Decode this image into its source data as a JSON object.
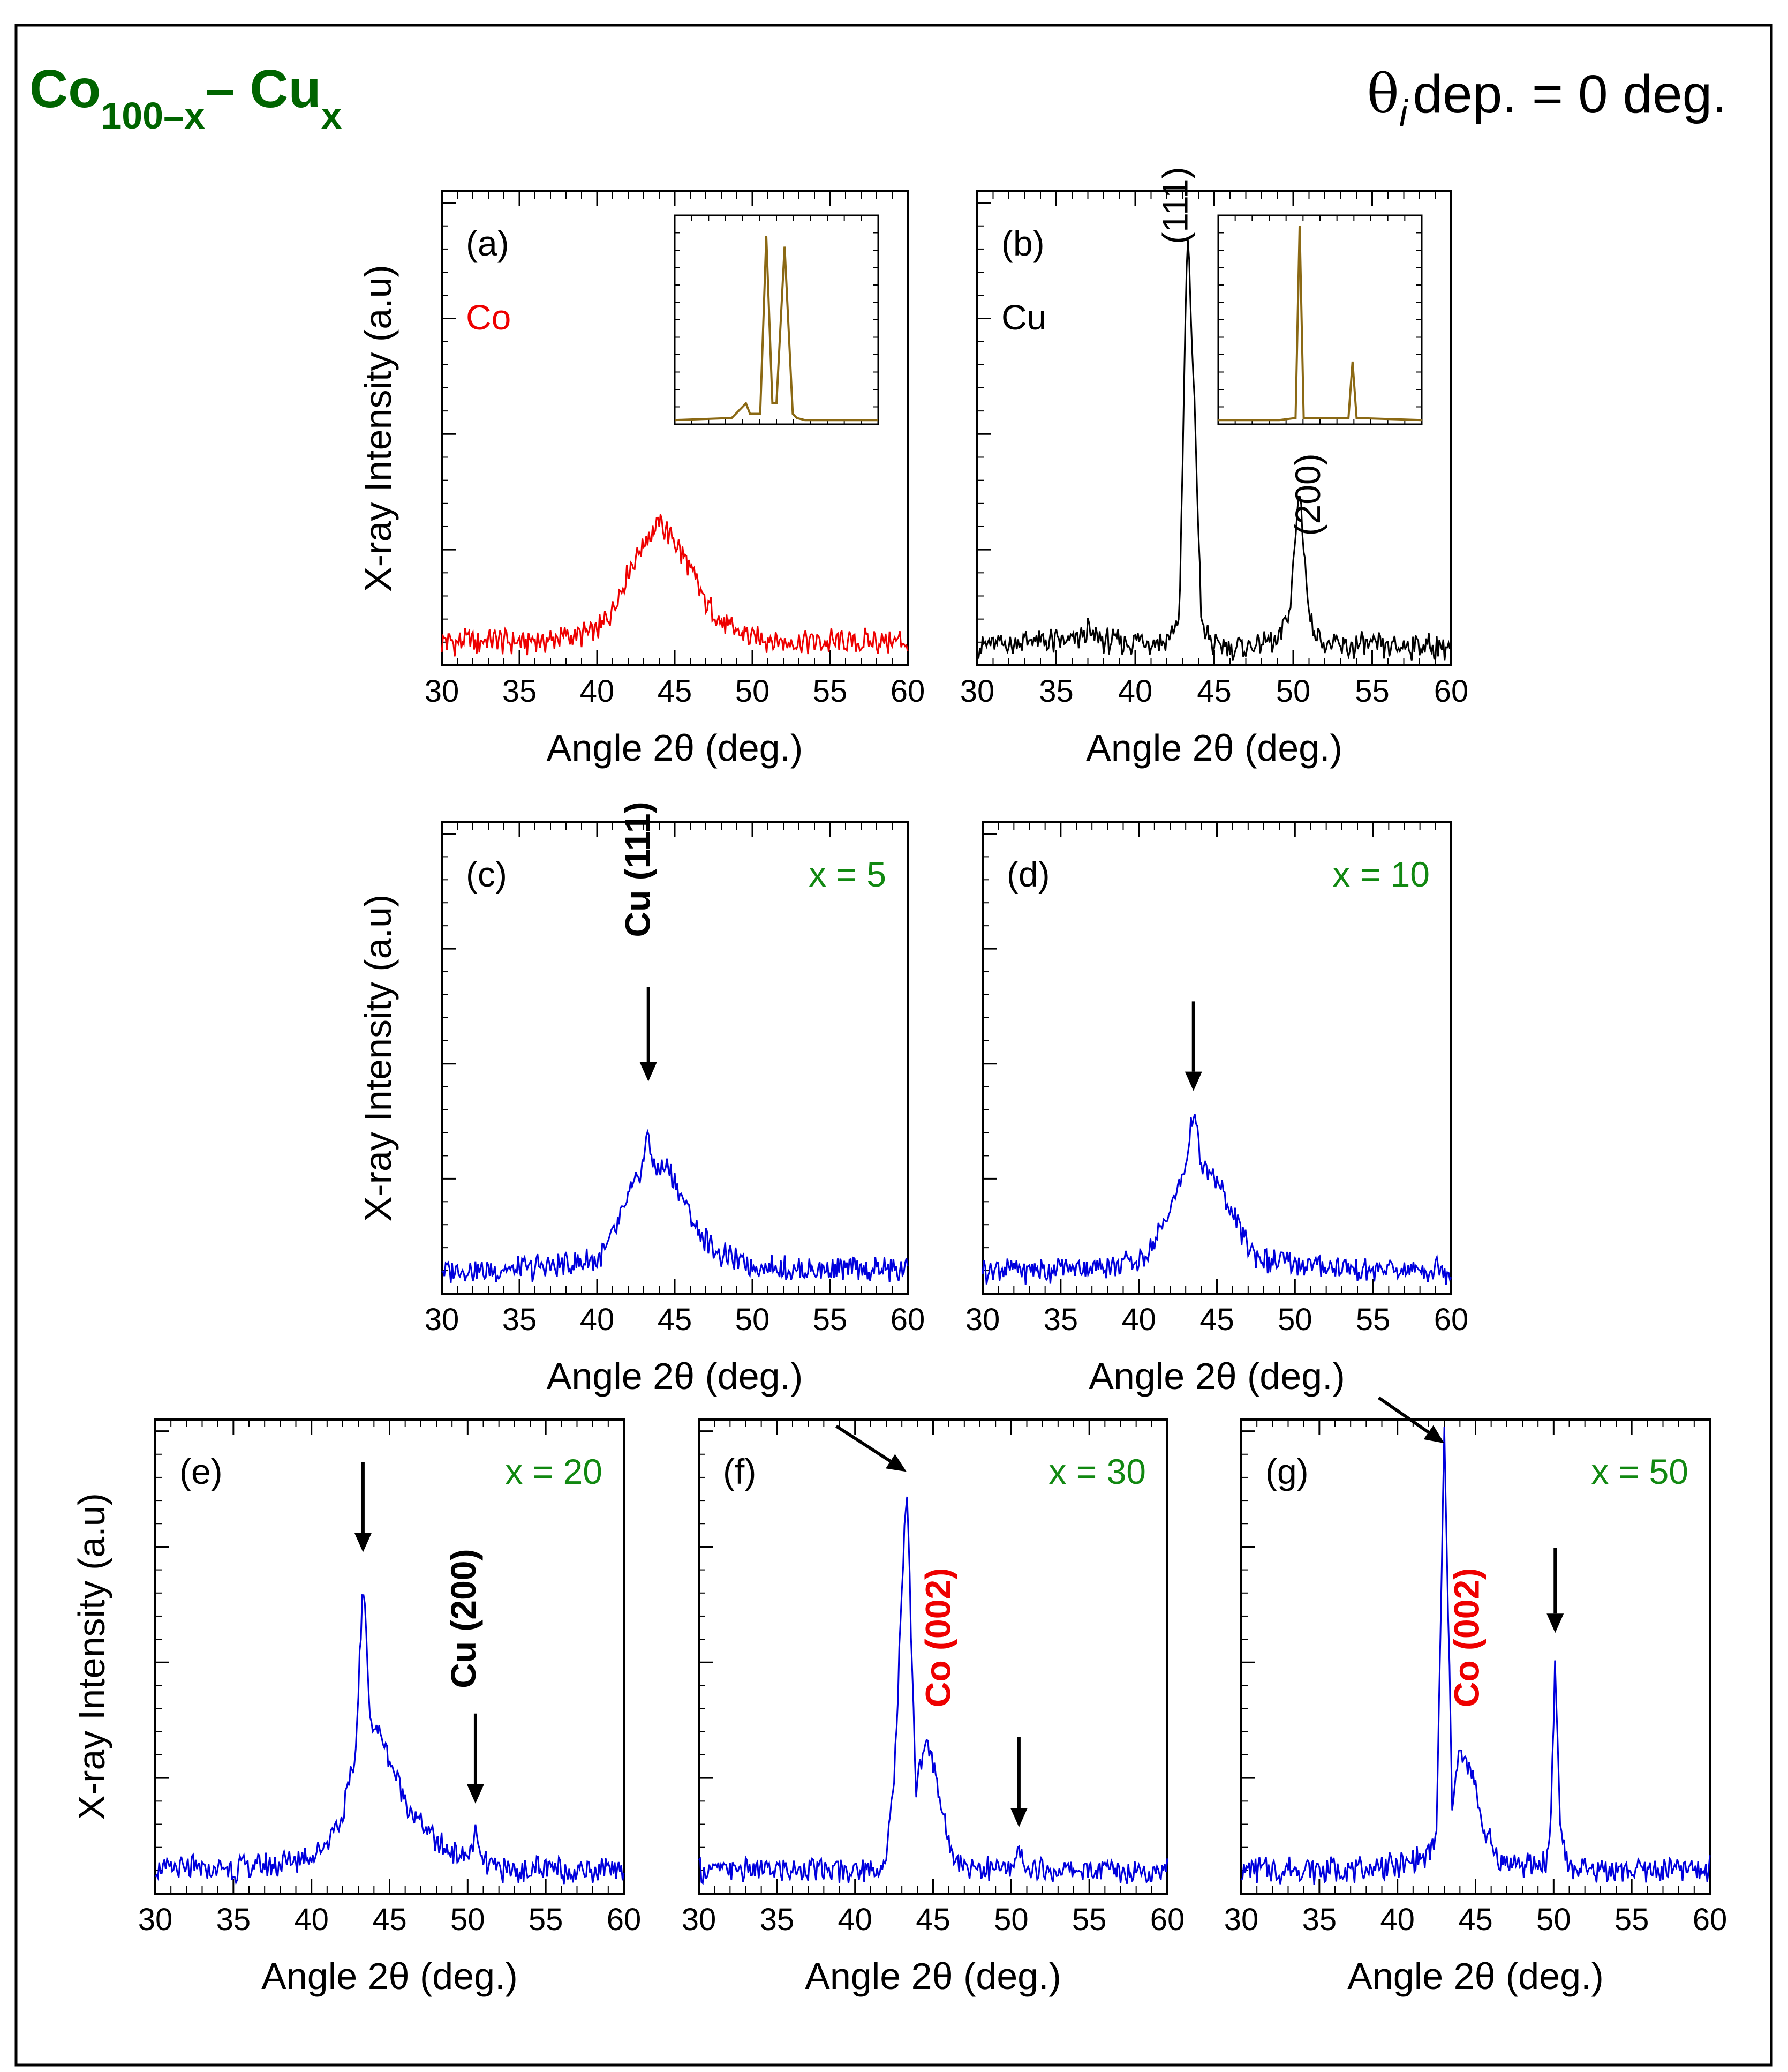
{
  "figure": {
    "title_main": "Co",
    "title_sub1": "100–x",
    "title_dash": "– Cu",
    "title_sub2": "x",
    "title_color": "#006400",
    "condition_theta": "θ",
    "condition_i": "i",
    "condition_rest": "dep. = 0 deg."
  },
  "chart_data": [
    {
      "id": "a",
      "type": "line",
      "label": "(a)",
      "sample": "Co",
      "sample_color": "#ee0000",
      "composition": "",
      "xlim": [
        30,
        60
      ],
      "xticks": [
        30,
        35,
        40,
        45,
        50,
        55,
        60
      ],
      "xlabel": "Angle 2θ (deg.)",
      "ylabel": "X-ray Intensity (a.u)",
      "ylim": [
        0,
        1
      ],
      "series": [
        {
          "name": "Co",
          "color": "#ee0000",
          "x": [
            30,
            32,
            34,
            36,
            38,
            40,
            41,
            42,
            43,
            44,
            45,
            46,
            47,
            48,
            49,
            50,
            52,
            54,
            56,
            58,
            60
          ],
          "y": [
            0.05,
            0.05,
            0.05,
            0.05,
            0.06,
            0.07,
            0.12,
            0.2,
            0.26,
            0.3,
            0.26,
            0.2,
            0.13,
            0.09,
            0.07,
            0.06,
            0.05,
            0.05,
            0.05,
            0.05,
            0.05
          ]
        }
      ],
      "peak_labels": [],
      "arrows": [],
      "inset": {
        "color": "#8b6914",
        "x": [
          0,
          0.28,
          0.35,
          0.37,
          0.42,
          0.45,
          0.48,
          0.5,
          0.54,
          0.58,
          0.6,
          0.64,
          1
        ],
        "y": [
          0.02,
          0.03,
          0.1,
          0.05,
          0.05,
          0.9,
          0.1,
          0.1,
          0.85,
          0.05,
          0.03,
          0.02,
          0.02
        ]
      }
    },
    {
      "id": "b",
      "type": "line",
      "label": "(b)",
      "sample": "Cu",
      "sample_color": "#000000",
      "composition": "",
      "xlim": [
        30,
        60
      ],
      "xticks": [
        30,
        35,
        40,
        45,
        50,
        55,
        60
      ],
      "xlabel": "Angle 2θ (deg.)",
      "ylabel": "",
      "ylim": [
        0,
        1
      ],
      "series": [
        {
          "name": "Cu",
          "color": "#000000",
          "x": [
            30,
            33,
            36,
            37,
            38,
            40,
            42,
            42.8,
            43.3,
            43.7,
            44.2,
            45,
            47,
            49,
            49.8,
            50.4,
            51,
            52,
            55,
            58,
            60
          ],
          "y": [
            0.04,
            0.05,
            0.05,
            0.07,
            0.05,
            0.05,
            0.05,
            0.1,
            0.92,
            0.6,
            0.08,
            0.04,
            0.04,
            0.05,
            0.12,
            0.38,
            0.1,
            0.04,
            0.04,
            0.04,
            0.04
          ]
        }
      ],
      "peak_labels": [
        {
          "text": "(111)",
          "x": 43.3,
          "y": 0.97,
          "color": "#000000",
          "bold": false
        },
        {
          "text": "(200)",
          "x": 51.7,
          "y": 0.36,
          "color": "#000000",
          "bold": false
        }
      ],
      "arrows": [],
      "inset": {
        "color": "#8b6914",
        "x": [
          0,
          0.3,
          0.38,
          0.4,
          0.42,
          0.6,
          0.64,
          0.66,
          0.68,
          1
        ],
        "y": [
          0.02,
          0.02,
          0.03,
          0.95,
          0.03,
          0.03,
          0.03,
          0.3,
          0.03,
          0.02
        ]
      }
    },
    {
      "id": "c",
      "type": "line",
      "label": "(c)",
      "sample": "",
      "sample_color": "#000000",
      "composition": "x = 5",
      "xlim": [
        30,
        60
      ],
      "xticks": [
        30,
        35,
        40,
        45,
        50,
        55,
        60
      ],
      "xlabel": "Angle 2θ (deg.)",
      "ylabel": "X-ray Intensity (a.u)",
      "ylim": [
        0,
        1
      ],
      "series": [
        {
          "name": "x = 5",
          "color": "#0000dd",
          "x": [
            30,
            34,
            38,
            40,
            41,
            42,
            43,
            43.3,
            43.6,
            44.5,
            45.5,
            46.5,
            48,
            50,
            53,
            56,
            60
          ],
          "y": [
            0.05,
            0.05,
            0.06,
            0.07,
            0.12,
            0.2,
            0.28,
            0.36,
            0.26,
            0.27,
            0.2,
            0.13,
            0.08,
            0.06,
            0.05,
            0.05,
            0.05
          ]
        }
      ],
      "peak_labels": [
        {
          "text": "Cu (111)",
          "x": 43.4,
          "y": 0.9,
          "color": "#000000",
          "bold": true
        }
      ],
      "arrows": [
        {
          "x": 43.3,
          "y_from": 0.65,
          "y_to": 0.45,
          "angle": "down"
        }
      ],
      "inset": null
    },
    {
      "id": "d",
      "type": "line",
      "label": "(d)",
      "sample": "",
      "sample_color": "#000000",
      "composition": "x = 10",
      "xlim": [
        30,
        60
      ],
      "xticks": [
        30,
        35,
        40,
        45,
        50,
        55,
        60
      ],
      "xlabel": "Angle 2θ (deg.)",
      "ylabel": "",
      "ylim": [
        0,
        1
      ],
      "series": [
        {
          "name": "x = 10",
          "color": "#0000dd",
          "x": [
            30,
            34,
            38,
            40,
            41,
            42,
            43,
            43.5,
            44,
            45,
            46,
            47,
            48,
            50,
            54,
            60
          ],
          "y": [
            0.05,
            0.05,
            0.06,
            0.07,
            0.11,
            0.18,
            0.27,
            0.39,
            0.27,
            0.24,
            0.17,
            0.1,
            0.07,
            0.06,
            0.05,
            0.05
          ]
        }
      ],
      "peak_labels": [],
      "arrows": [
        {
          "x": 43.5,
          "y_from": 0.62,
          "y_to": 0.43,
          "angle": "down"
        }
      ],
      "inset": null
    },
    {
      "id": "e",
      "type": "line",
      "label": "(e)",
      "sample": "",
      "sample_color": "#000000",
      "composition": "x = 20",
      "xlim": [
        30,
        60
      ],
      "xticks": [
        30,
        35,
        40,
        45,
        50,
        55,
        60
      ],
      "xlabel": "Angle 2θ (deg.)",
      "ylabel": "X-ray Intensity (a.u)",
      "ylim": [
        0,
        1
      ],
      "series": [
        {
          "name": "x = 20",
          "color": "#0000dd",
          "x": [
            30,
            34,
            38,
            40,
            41,
            42,
            42.8,
            43.3,
            43.8,
            44.5,
            45.5,
            46.5,
            48,
            49.5,
            50.2,
            50.5,
            50.8,
            52,
            55,
            60
          ],
          "y": [
            0.05,
            0.05,
            0.06,
            0.08,
            0.11,
            0.17,
            0.28,
            0.66,
            0.36,
            0.33,
            0.24,
            0.17,
            0.11,
            0.08,
            0.08,
            0.13,
            0.07,
            0.05,
            0.05,
            0.05
          ]
        }
      ],
      "peak_labels": [
        {
          "text": "Cu (200)",
          "x": 50.5,
          "y": 0.58,
          "color": "#000000",
          "bold": true
        }
      ],
      "arrows": [
        {
          "x": 43.3,
          "y_from": 0.91,
          "y_to": 0.72,
          "angle": "down"
        },
        {
          "x": 50.5,
          "y_from": 0.38,
          "y_to": 0.19,
          "angle": "down"
        }
      ],
      "inset": null
    },
    {
      "id": "f",
      "type": "line",
      "label": "(f)",
      "sample": "",
      "sample_color": "#000000",
      "composition": "x = 30",
      "xlim": [
        30,
        60
      ],
      "xticks": [
        30,
        35,
        40,
        45,
        50,
        55,
        60
      ],
      "xlabel": "Angle 2θ (deg.)",
      "ylabel": "",
      "ylim": [
        0,
        1
      ],
      "series": [
        {
          "name": "x = 30",
          "color": "#0000dd",
          "x": [
            30,
            34,
            38,
            40,
            41,
            42,
            42.6,
            43.3,
            43.9,
            44.5,
            45.2,
            46,
            47,
            49,
            50.2,
            50.5,
            50.8,
            52,
            55,
            60
          ],
          "y": [
            0.05,
            0.05,
            0.05,
            0.05,
            0.05,
            0.06,
            0.3,
            0.88,
            0.22,
            0.32,
            0.25,
            0.1,
            0.06,
            0.05,
            0.05,
            0.1,
            0.05,
            0.05,
            0.05,
            0.05
          ]
        }
      ],
      "peak_labels": [
        {
          "text": "Co (002)",
          "x": 46.1,
          "y": 0.54,
          "color": "#ee0000",
          "bold": true
        }
      ],
      "arrows": [
        {
          "x": 43.3,
          "y_from": 0.94,
          "y_to": 0.89,
          "angle": "diag",
          "dx": -4.5
        },
        {
          "x": 50.5,
          "y_from": 0.33,
          "y_to": 0.14,
          "angle": "down"
        }
      ],
      "inset": null
    },
    {
      "id": "g",
      "type": "line",
      "label": "(g)",
      "sample": "",
      "sample_color": "#000000",
      "composition": "x = 50",
      "xlim": [
        30,
        60
      ],
      "xticks": [
        30,
        35,
        40,
        45,
        50,
        55,
        60
      ],
      "xlabel": "Angle 2θ (deg.)",
      "ylabel": "",
      "ylim": [
        0,
        1
      ],
      "series": [
        {
          "name": "x = 50",
          "color": "#0000dd",
          "x": [
            30,
            34,
            38,
            40,
            41,
            42,
            42.5,
            43,
            43.5,
            44,
            44.8,
            45.6,
            46.5,
            48,
            49.5,
            49.8,
            50.1,
            50.4,
            51,
            53,
            56,
            60
          ],
          "y": [
            0.05,
            0.05,
            0.05,
            0.06,
            0.07,
            0.08,
            0.12,
            0.97,
            0.2,
            0.3,
            0.25,
            0.13,
            0.07,
            0.06,
            0.06,
            0.14,
            0.5,
            0.14,
            0.05,
            0.05,
            0.05,
            0.05
          ]
        }
      ],
      "peak_labels": [
        {
          "text": "Co (002)",
          "x": 45.2,
          "y": 0.54,
          "color": "#ee0000",
          "bold": true
        }
      ],
      "arrows": [
        {
          "x": 43.0,
          "y_from": 0.97,
          "y_to": 0.95,
          "angle": "diag",
          "dx": -4.2
        },
        {
          "x": 50.1,
          "y_from": 0.73,
          "y_to": 0.55,
          "angle": "down"
        }
      ],
      "inset": null
    }
  ]
}
